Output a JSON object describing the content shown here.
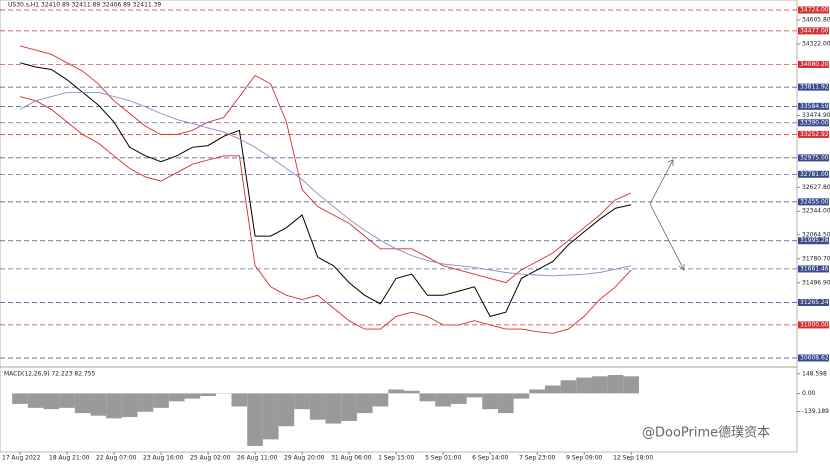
{
  "chart_data": [
    {
      "type": "line",
      "title": "US30.s,H1 32410.89 32411.89 32406.89 32411.39",
      "categories": [
        "17 Aug 2022",
        null,
        null,
        "18 Aug 21:00",
        null,
        null,
        "22 Aug 07:00",
        null,
        null,
        "23 Aug 16:00",
        null,
        null,
        "25 Aug 02:00",
        null,
        null,
        "26 Aug 11:00",
        null,
        null,
        "29 Aug 20:00",
        null,
        null,
        "31 Aug 06:00",
        null,
        null,
        "1 Sep 15:00",
        null,
        null,
        "5 Sep 01:00",
        null,
        null,
        "6 Sep 14:00",
        null,
        null,
        "7 Sep 23:00",
        null,
        null,
        "9 Sep 09:00",
        null,
        null,
        "12 Sep 18:00"
      ],
      "series": [
        {
          "color": "#000000",
          "values": [
            34100,
            34050,
            34020,
            33900,
            33750,
            33600,
            33400,
            33100,
            33000,
            32930,
            33000,
            33100,
            33120,
            33230,
            33300,
            32050,
            32050,
            32150,
            32300,
            31800,
            31700,
            31500,
            31350,
            31250,
            31550,
            31600,
            31350,
            31350,
            31400,
            31450,
            31100,
            31150,
            31550,
            31650,
            31750,
            31950,
            32100,
            32250,
            32380,
            32420
          ]
        },
        {
          "color": "#d32f2f",
          "values": [
            34300,
            34250,
            34200,
            34100,
            34000,
            33850,
            33650,
            33500,
            33350,
            33250,
            33250,
            33300,
            33400,
            33450,
            33700,
            33950,
            33850,
            33400,
            32600,
            32400,
            32300,
            32200,
            32050,
            31900,
            31900,
            31900,
            31800,
            31700,
            31650,
            31600,
            31550,
            31500,
            31650,
            31750,
            31850,
            32000,
            32150,
            32300,
            32480,
            32560
          ]
        },
        {
          "color": "#d32f2f",
          "values": [
            33700,
            33650,
            33550,
            33400,
            33250,
            33150,
            33000,
            32850,
            32750,
            32700,
            32800,
            32900,
            32950,
            33000,
            33000,
            31700,
            31450,
            31350,
            31300,
            31350,
            31200,
            31050,
            30950,
            30950,
            31100,
            31150,
            31100,
            31000,
            31000,
            31050,
            31000,
            30950,
            30950,
            30920,
            30900,
            30950,
            31100,
            31300,
            31450,
            31650
          ]
        },
        {
          "color": "#8a8fc8",
          "values": [
            33550,
            33650,
            33700,
            33750,
            33750,
            33750,
            33700,
            33650,
            33580,
            33500,
            33430,
            33380,
            33330,
            33280,
            33200,
            33100,
            32980,
            32850,
            32720,
            32550,
            32400,
            32250,
            32120,
            32000,
            31900,
            31820,
            31760,
            31720,
            31700,
            31680,
            31650,
            31620,
            31600,
            31590,
            31580,
            31590,
            31600,
            31620,
            31660,
            31700
          ]
        }
      ],
      "ylim": [
        30502,
        34795
      ],
      "yticks": [
        {
          "value": 34605.8,
          "label": "34605.80"
        },
        {
          "value": 34322,
          "label": "34322.00"
        },
        {
          "value": 33474.9,
          "label": "33474.90"
        },
        {
          "value": 32627.8,
          "label": "32627.80"
        },
        {
          "value": 32344,
          "label": "32344.00"
        },
        {
          "value": 32064.5,
          "label": "32064.50"
        },
        {
          "value": 31780.7,
          "label": "31780.70"
        },
        {
          "value": 31496.9,
          "label": "31496.90"
        }
      ],
      "levels": [
        {
          "value": 34724,
          "label": "34724.00",
          "color": "#d32f2f"
        },
        {
          "value": 34477,
          "label": "34477.00",
          "color": "#d32f2f"
        },
        {
          "value": 34080.2,
          "label": "34080.20",
          "color": "#d32f2f"
        },
        {
          "value": 33811.92,
          "label": "33811.92",
          "color": "#3a4a8c"
        },
        {
          "value": 33584.59,
          "label": "33584.59",
          "color": "#3a4a8c"
        },
        {
          "value": 33390,
          "label": "33390.00",
          "color": "#3a4a8c"
        },
        {
          "value": 33252.92,
          "label": "33252.92",
          "color": "#d32f2f"
        },
        {
          "value": 32975,
          "label": "32975.00",
          "color": "#3a4a8c"
        },
        {
          "value": 32781,
          "label": "32781.00",
          "color": "#3a4a8c"
        },
        {
          "value": 32455,
          "label": "32455.00",
          "color": "#3a4a8c"
        },
        {
          "value": 31995.28,
          "label": "31995.28",
          "color": "#3a4a8c"
        },
        {
          "value": 31661.46,
          "label": "31661.46",
          "color": "#3a4a8c"
        },
        {
          "value": 31265.24,
          "label": "31265.24",
          "color": "#3a4a8c"
        },
        {
          "value": 31000,
          "label": "31000.00",
          "color": "#d32f2f"
        },
        {
          "value": 30608.62,
          "label": "30608.62",
          "color": "#3a4a8c"
        }
      ]
    },
    {
      "type": "bar",
      "title": "MACD(12,26,9) 72.223 82.755",
      "color": "#9a9a9a",
      "values": [
        -80,
        -110,
        -120,
        -110,
        -150,
        -170,
        -190,
        -180,
        -140,
        -110,
        -60,
        -40,
        -20,
        0,
        -100,
        -400,
        -350,
        -250,
        -120,
        -200,
        -230,
        -210,
        -150,
        -100,
        30,
        20,
        -60,
        -100,
        -80,
        -30,
        -120,
        -150,
        -40,
        30,
        60,
        100,
        120,
        130,
        140,
        130
      ],
      "ylim": [
        -446,
        178
      ],
      "yticks": [
        148.598,
        {
          "value": 0,
          "label": "0.00"
        },
        -139.189
      ]
    }
  ],
  "watermark": "@DooPrime德璞资本"
}
